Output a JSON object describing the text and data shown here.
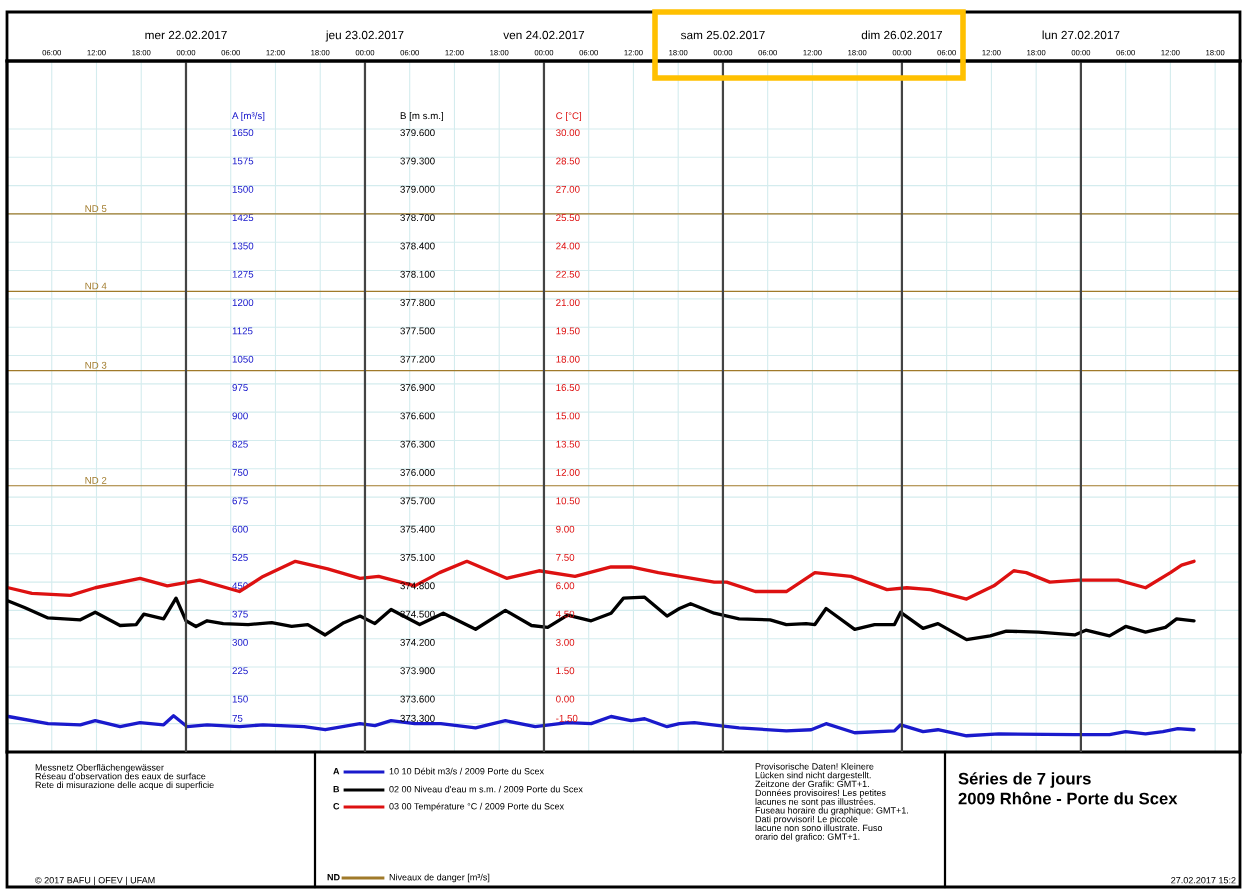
{
  "chart_data": {
    "type": "line",
    "title": "Séries de 7 jours",
    "subtitle": "2009 Rhône - Porte du Scex",
    "ylabel": "A [m³/s]",
    "y2label": "B [m s.m.]",
    "y3label": "C [°C]",
    "xlim": [
      "2017-02-21T00:00",
      "2017-02-27T21:20"
    ],
    "xticks": [
      {
        "value": "2017-02-21T06:00",
        "label": "06:00"
      },
      {
        "value": "2017-02-21T12:00",
        "label": "12:00"
      },
      {
        "value": "2017-02-21T18:00",
        "label": "18:00"
      },
      {
        "value": "2017-02-22T00:00",
        "label": "00:00"
      },
      {
        "value": "2017-02-22T06:00",
        "label": "06:00"
      },
      {
        "value": "2017-02-22T12:00",
        "label": "12:00"
      },
      {
        "value": "2017-02-22T18:00",
        "label": "18:00"
      },
      {
        "value": "2017-02-23T00:00",
        "label": "00:00"
      },
      {
        "value": "2017-02-23T06:00",
        "label": "06:00"
      },
      {
        "value": "2017-02-23T12:00",
        "label": "12:00"
      },
      {
        "value": "2017-02-23T18:00",
        "label": "18:00"
      },
      {
        "value": "2017-02-24T00:00",
        "label": "00:00"
      },
      {
        "value": "2017-02-24T06:00",
        "label": "06:00"
      },
      {
        "value": "2017-02-24T12:00",
        "label": "12:00"
      },
      {
        "value": "2017-02-24T18:00",
        "label": "18:00"
      },
      {
        "value": "2017-02-25T00:00",
        "label": "00:00"
      },
      {
        "value": "2017-02-25T06:00",
        "label": "06:00"
      },
      {
        "value": "2017-02-25T12:00",
        "label": "12:00"
      },
      {
        "value": "2017-02-25T18:00",
        "label": "18:00"
      },
      {
        "value": "2017-02-26T00:00",
        "label": "00:00"
      },
      {
        "value": "2017-02-26T06:00",
        "label": "06:00"
      },
      {
        "value": "2017-02-26T12:00",
        "label": "12:00"
      },
      {
        "value": "2017-02-26T18:00",
        "label": "18:00"
      },
      {
        "value": "2017-02-27T00:00",
        "label": "00:00"
      },
      {
        "value": "2017-02-27T06:00",
        "label": "06:00"
      },
      {
        "value": "2017-02-27T12:00",
        "label": "12:00"
      },
      {
        "value": "2017-02-27T18:00",
        "label": "18:00"
      }
    ],
    "x2lim": [
      "2017-02-21T00:00",
      "2017-02-27T21:20"
    ],
    "x2ticks": [
      {
        "value": "2017-02-22T00:00",
        "label": "mer 22.02.2017"
      },
      {
        "value": "2017-02-23T00:00",
        "label": "jeu 23.02.2017"
      },
      {
        "value": "2017-02-24T00:00",
        "label": "ven 24.02.2017"
      },
      {
        "value": "2017-02-25T00:00",
        "label": "sam 25.02.2017"
      },
      {
        "value": "2017-02-26T00:00",
        "label": "dim 26.02.2017"
      },
      {
        "value": "2017-02-27T00:00",
        "label": "lun 27.02.2017"
      }
    ],
    "ylim": [
      0,
      1830
    ],
    "yticks": [
      75,
      150,
      225,
      300,
      375,
      450,
      525,
      600,
      675,
      750,
      825,
      900,
      975,
      1050,
      1125,
      1200,
      1275,
      1350,
      1425,
      1500,
      1575,
      1650
    ],
    "y2lim": [
      373.0,
      380.32
    ],
    "y2ticks": [
      {
        "value": 373.3,
        "label": "373.300"
      },
      {
        "value": 373.6,
        "label": "373.600"
      },
      {
        "value": 373.9,
        "label": "373.900"
      },
      {
        "value": 374.2,
        "label": "374.200"
      },
      {
        "value": 374.5,
        "label": "374.500"
      },
      {
        "value": 374.8,
        "label": "374.800"
      },
      {
        "value": 375.1,
        "label": "375.100"
      },
      {
        "value": 375.4,
        "label": "375.400"
      },
      {
        "value": 375.7,
        "label": "375.700"
      },
      {
        "value": 376.0,
        "label": "376.000"
      },
      {
        "value": 376.3,
        "label": "376.300"
      },
      {
        "value": 376.6,
        "label": "376.600"
      },
      {
        "value": 376.9,
        "label": "376.900"
      },
      {
        "value": 377.2,
        "label": "377.200"
      },
      {
        "value": 377.5,
        "label": "377.500"
      },
      {
        "value": 377.8,
        "label": "377.800"
      },
      {
        "value": 378.1,
        "label": "378.100"
      },
      {
        "value": 378.4,
        "label": "378.400"
      },
      {
        "value": 378.7,
        "label": "378.700"
      },
      {
        "value": 379.0,
        "label": "379.000"
      },
      {
        "value": 379.3,
        "label": "379.300"
      },
      {
        "value": 379.6,
        "label": "379.600"
      }
    ],
    "y3lim": [
      -3.0,
      33.6
    ],
    "y3ticks": [
      {
        "value": -1.5,
        "label": "-1.50"
      },
      {
        "value": 0,
        "label": "0.00"
      },
      {
        "value": 1.5,
        "label": "1.50"
      },
      {
        "value": 3,
        "label": "3.00"
      },
      {
        "value": 4.5,
        "label": "4.50"
      },
      {
        "value": 6,
        "label": "6.00"
      },
      {
        "value": 7.5,
        "label": "7.50"
      },
      {
        "value": 9,
        "label": "9.00"
      },
      {
        "value": 10.5,
        "label": "10.50"
      },
      {
        "value": 12,
        "label": "12.00"
      },
      {
        "value": 13.5,
        "label": "13.50"
      },
      {
        "value": 15,
        "label": "15.00"
      },
      {
        "value": 16.5,
        "label": "16.50"
      },
      {
        "value": 18,
        "label": "18.00"
      },
      {
        "value": 19.5,
        "label": "19.50"
      },
      {
        "value": 21,
        "label": "21.00"
      },
      {
        "value": 22.5,
        "label": "22.50"
      },
      {
        "value": 24,
        "label": "24.00"
      },
      {
        "value": 25.5,
        "label": "25.50"
      },
      {
        "value": 27,
        "label": "27.00"
      },
      {
        "value": 28.5,
        "label": "28.50"
      },
      {
        "value": 30,
        "label": "30.00"
      }
    ],
    "grid": true,
    "legend": "bottom",
    "ref_lines": [
      {
        "axis": "y",
        "value": 1425,
        "label": "ND 5",
        "color": "#a07a2a"
      },
      {
        "axis": "y",
        "value": 1220,
        "label": "ND 4",
        "color": "#a07a2a"
      },
      {
        "axis": "y",
        "value": 1010,
        "label": "ND 3",
        "color": "#a07a2a"
      },
      {
        "axis": "y",
        "value": 705,
        "label": "ND 2",
        "color": "#a07a2a"
      }
    ],
    "series": [
      {
        "name": "10 10 Débit m3/s / 2009 Porte du Scex",
        "color": "#1a1acc",
        "x": [
          "2017-02-21T00:10",
          "2017-02-21T05:30",
          "2017-02-21T09:50",
          "2017-02-21T11:50",
          "2017-02-21T15:10",
          "2017-02-21T17:50",
          "2017-02-21T21:00",
          "2017-02-21T22:20",
          "2017-02-22T00:10",
          "2017-02-22T02:50",
          "2017-02-22T07:10",
          "2017-02-22T10:20",
          "2017-02-22T15:50",
          "2017-02-22T18:40",
          "2017-02-22T23:20",
          "2017-02-23T01:20",
          "2017-02-23T03:30",
          "2017-02-23T06:40",
          "2017-02-23T10:10",
          "2017-02-23T14:50",
          "2017-02-23T18:50",
          "2017-02-23T22:50",
          "2017-02-24T03:10",
          "2017-02-24T06:20",
          "2017-02-24T09:00",
          "2017-02-24T11:40",
          "2017-02-24T13:30",
          "2017-02-24T16:30",
          "2017-02-24T18:10",
          "2017-02-24T20:10",
          "2017-02-24T23:30",
          "2017-02-25T02:10",
          "2017-02-25T08:30",
          "2017-02-25T11:50",
          "2017-02-25T13:50",
          "2017-02-25T17:40",
          "2017-02-25T23:00",
          "2017-02-25T23:50",
          "2017-02-26T02:50",
          "2017-02-26T04:50",
          "2017-02-26T08:40",
          "2017-02-26T13:00",
          "2017-02-26T23:10",
          "2017-02-27T03:50",
          "2017-02-27T06:00",
          "2017-02-27T08:40",
          "2017-02-27T11:00",
          "2017-02-27T13:00",
          "2017-02-27T15:10"
        ],
        "values": [
          94,
          75,
          72,
          83,
          67,
          78,
          72,
          96,
          67,
          72,
          67,
          72,
          67,
          59,
          75,
          70,
          83,
          75,
          75,
          64,
          83,
          67,
          78,
          75,
          94,
          83,
          88,
          67,
          75,
          78,
          70,
          64,
          56,
          59,
          75,
          51,
          56,
          72,
          54,
          59,
          43,
          48,
          46,
          46,
          54,
          48,
          54,
          62,
          59
        ]
      },
      {
        "name": "02 00 Niveau d'eau m s.m. / 2009 Porte du Scex",
        "color": "#000000",
        "axis": "y2",
        "x": [
          "2017-02-21T00:10",
          "2017-02-21T02:20",
          "2017-02-21T05:30",
          "2017-02-21T09:50",
          "2017-02-21T11:50",
          "2017-02-21T15:10",
          "2017-02-21T17:20",
          "2017-02-21T18:20",
          "2017-02-21T21:00",
          "2017-02-21T22:40",
          "2017-02-22T00:00",
          "2017-02-22T01:20",
          "2017-02-22T02:50",
          "2017-02-22T05:00",
          "2017-02-22T08:20",
          "2017-02-22T11:30",
          "2017-02-22T14:10",
          "2017-02-22T16:20",
          "2017-02-22T18:40",
          "2017-02-22T21:10",
          "2017-02-22T23:20",
          "2017-02-23T01:20",
          "2017-02-23T03:30",
          "2017-02-23T07:20",
          "2017-02-23T10:30",
          "2017-02-23T14:50",
          "2017-02-23T18:50",
          "2017-02-23T22:20",
          "2017-02-24T00:30",
          "2017-02-24T03:10",
          "2017-02-24T06:20",
          "2017-02-24T09:00",
          "2017-02-24T10:40",
          "2017-02-24T13:30",
          "2017-02-24T16:30",
          "2017-02-24T18:10",
          "2017-02-24T19:40",
          "2017-02-24T22:50",
          "2017-02-25T02:10",
          "2017-02-25T06:20",
          "2017-02-25T08:30",
          "2017-02-25T11:10",
          "2017-02-25T12:20",
          "2017-02-25T13:50",
          "2017-02-25T17:40",
          "2017-02-25T20:20",
          "2017-02-25T23:00",
          "2017-02-25T23:50",
          "2017-02-26T02:50",
          "2017-02-26T04:50",
          "2017-02-26T08:40",
          "2017-02-26T11:50",
          "2017-02-26T14:00",
          "2017-02-26T18:20",
          "2017-02-26T23:10",
          "2017-02-27T00:40",
          "2017-02-27T03:50",
          "2017-02-27T06:00",
          "2017-02-27T08:40",
          "2017-02-27T11:20",
          "2017-02-27T12:50",
          "2017-02-27T15:10"
        ],
        "values": [
          374.6,
          374.53,
          374.42,
          374.4,
          374.48,
          374.34,
          374.35,
          374.46,
          374.41,
          374.63,
          374.39,
          374.33,
          374.39,
          374.36,
          374.35,
          374.37,
          374.33,
          374.35,
          374.24,
          374.37,
          374.44,
          374.36,
          374.51,
          374.35,
          374.47,
          374.3,
          374.5,
          374.34,
          374.32,
          374.45,
          374.39,
          374.47,
          374.63,
          374.64,
          374.44,
          374.52,
          374.57,
          374.47,
          374.41,
          374.4,
          374.35,
          374.36,
          374.35,
          374.52,
          374.3,
          374.35,
          374.35,
          374.48,
          374.31,
          374.36,
          374.19,
          374.23,
          374.28,
          374.27,
          374.24,
          374.29,
          374.23,
          374.33,
          374.27,
          374.32,
          374.41,
          374.39
        ]
      },
      {
        "name": "03 00 Température °C / 2009 Porte du Scex",
        "color": "#dd1111",
        "axis": "y3",
        "x": [
          "2017-02-21T00:10",
          "2017-02-21T03:20",
          "2017-02-21T08:30",
          "2017-02-21T11:50",
          "2017-02-21T17:50",
          "2017-02-21T21:30",
          "2017-02-22T01:50",
          "2017-02-22T07:10",
          "2017-02-22T10:20",
          "2017-02-22T14:40",
          "2017-02-22T19:00",
          "2017-02-22T23:20",
          "2017-02-23T01:50",
          "2017-02-23T06:40",
          "2017-02-23T10:00",
          "2017-02-23T13:40",
          "2017-02-23T19:00",
          "2017-02-23T23:20",
          "2017-02-24T04:10",
          "2017-02-24T09:00",
          "2017-02-24T11:40",
          "2017-02-24T15:20",
          "2017-02-24T22:50",
          "2017-02-25T00:30",
          "2017-02-25T04:20",
          "2017-02-25T08:30",
          "2017-02-25T12:20",
          "2017-02-25T17:10",
          "2017-02-25T22:00",
          "2017-02-26T00:40",
          "2017-02-26T03:50",
          "2017-02-26T08:40",
          "2017-02-26T12:20",
          "2017-02-26T15:00",
          "2017-02-26T16:40",
          "2017-02-26T19:50",
          "2017-02-26T23:40",
          "2017-02-27T05:00",
          "2017-02-27T08:40",
          "2017-02-27T12:00",
          "2017-02-27T13:30",
          "2017-02-27T15:10"
        ],
        "values": [
          5.7,
          5.4,
          5.3,
          5.7,
          6.2,
          5.8,
          6.1,
          5.5,
          6.3,
          7.1,
          6.7,
          6.2,
          6.3,
          5.8,
          6.5,
          7.1,
          6.2,
          6.6,
          6.3,
          6.8,
          6.8,
          6.5,
          6.0,
          6.0,
          5.5,
          5.5,
          6.5,
          6.3,
          5.6,
          5.7,
          5.6,
          5.1,
          5.8,
          6.6,
          6.5,
          6.0,
          6.1,
          6.1,
          5.7,
          6.5,
          6.9,
          7.1
        ]
      }
    ],
    "annotations": [
      "Messnetz Oberflächengewässer\nRéseau d'observation des eaux de surface\nRete di misurazione delle acque di superficie",
      "© 2017 BAFU | OFEV | UFAM",
      "Provisorische Daten! Kleinere\nLücken sind nicht dargestellt.\nZeitzone der Grafik: GMT+1.\nDonnées provisoires! Les petites\nlacunes ne sont pas illustrées.\nFuseau horaire du graphique: GMT+1.\nDati provvisori! Le piccole\nlacune non sono illustrate. Fuso\norario del grafico: GMT+1.",
      "27.02.2017 15:2",
      "A",
      "B",
      "C",
      "ND",
      "Niveaux de danger [m³/s]"
    ]
  }
}
